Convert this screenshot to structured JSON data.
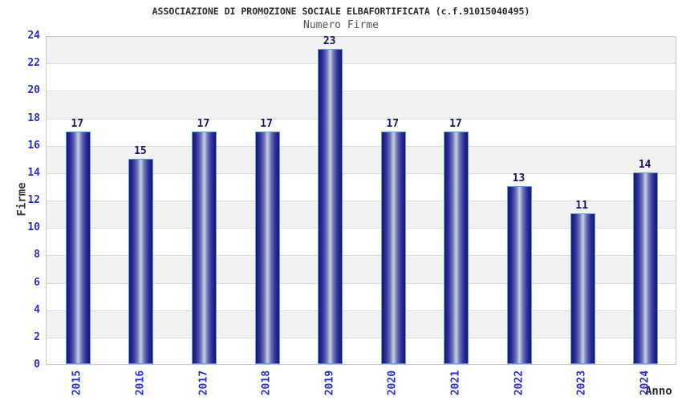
{
  "chart_data": {
    "type": "bar",
    "title": "ASSOCIAZIONE DI PROMOZIONE SOCIALE ELBAFORTIFICATA (c.f.91015040495)",
    "subtitle": "Numero Firme",
    "xlabel": "Anno",
    "ylabel": "Firme",
    "categories": [
      "2015",
      "2016",
      "2017",
      "2018",
      "2019",
      "2020",
      "2021",
      "2022",
      "2023",
      "2024"
    ],
    "values": [
      17,
      15,
      17,
      17,
      23,
      17,
      17,
      13,
      11,
      14
    ],
    "ylim": [
      0,
      24
    ],
    "yticks": [
      0,
      2,
      4,
      6,
      8,
      10,
      12,
      14,
      16,
      18,
      20,
      22,
      24
    ],
    "grid": true,
    "legend": null,
    "colors": {
      "bar_dark": "#17176b",
      "bar_mid": "#31319b",
      "bar_highlight": "#c9cfe4",
      "bar_border": "#5e9fe0",
      "tick_label": "#2b2bcf",
      "value_label": "#16165e",
      "band_gray": "#f2f2f2",
      "band_white": "#ffffff",
      "gridline": "#dcdcdc",
      "plot_border": "#c9c9c9",
      "title_color": "#2b2b2b",
      "subtitle_color": "#555555",
      "axis_title_color": "#3d3d3d"
    }
  }
}
